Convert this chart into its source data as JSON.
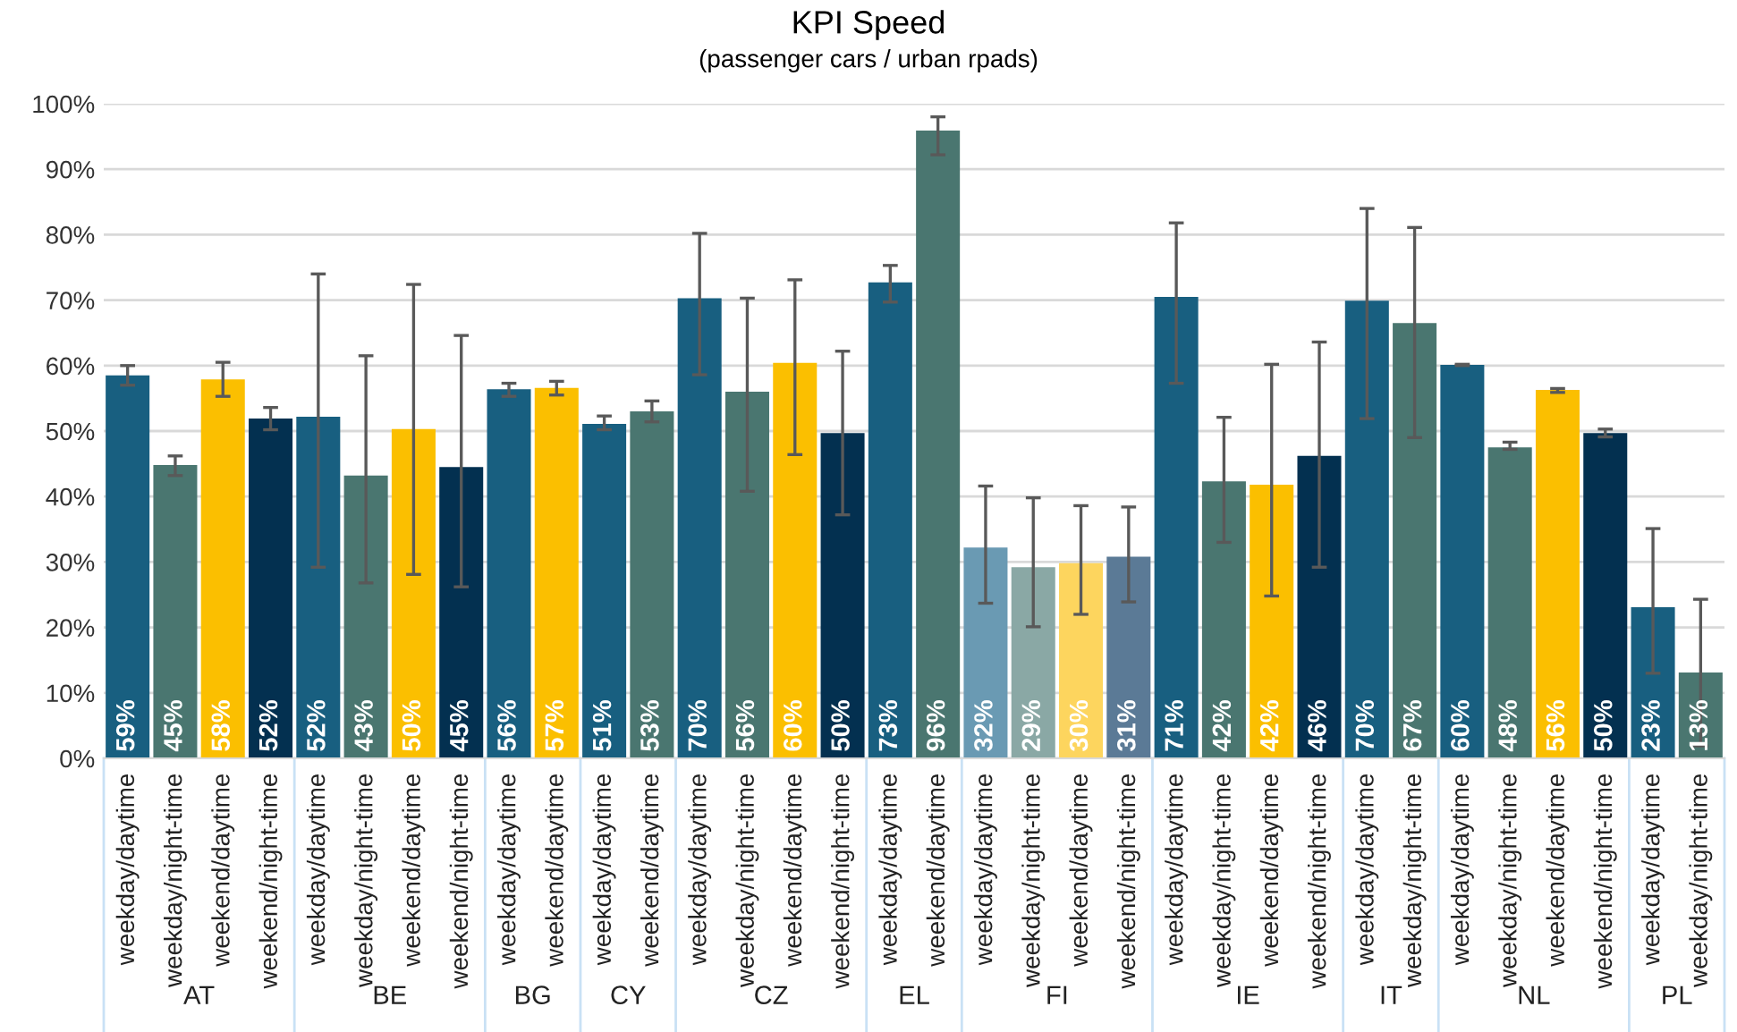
{
  "chart_data": {
    "type": "bar",
    "title": "KPI Speed",
    "subtitle": "(passenger cars / urban rpads)",
    "categories": [
      "weekday/daytime",
      "weekday/night-time",
      "weekend/daytime",
      "weekend/night-time",
      "weekday/daytime",
      "weekday/night-time",
      "weekend/daytime",
      "weekend/night-time",
      "weekday/daytime",
      "weekend/daytime",
      "weekday/daytime",
      "weekend/daytime",
      "weekday/daytime",
      "weekday/night-time",
      "weekend/daytime",
      "weekend/night-time",
      "weekday/daytime",
      "weekend/daytime",
      "weekday/daytime",
      "weekday/night-time",
      "weekend/daytime",
      "weekend/night-time",
      "weekday/daytime",
      "weekday/night-time",
      "weekend/daytime",
      "weekend/night-time",
      "weekday/daytime",
      "weekday/night-time",
      "weekday/daytime",
      "weekday/night-time",
      "weekend/daytime",
      "weekend/night-time",
      "weekday/daytime",
      "weekday/night-time"
    ],
    "values": [
      58.5,
      44.8,
      57.9,
      51.9,
      52.2,
      43.2,
      50.3,
      44.5,
      56.4,
      56.6,
      51.1,
      53.0,
      70.3,
      56.0,
      60.4,
      49.7,
      72.7,
      95.9,
      32.2,
      29.2,
      29.8,
      30.8,
      70.5,
      42.3,
      41.8,
      46.2,
      69.9,
      66.5,
      60.1,
      47.5,
      56.3,
      49.7,
      23.1,
      13.1
    ],
    "errors": [
      [
        57.0,
        60.0
      ],
      [
        43.2,
        46.2
      ],
      [
        55.3,
        60.5
      ],
      [
        50.2,
        53.6
      ],
      [
        29.2,
        74.0
      ],
      [
        26.8,
        61.5
      ],
      [
        28.1,
        72.4
      ],
      [
        26.2,
        64.6
      ],
      [
        55.3,
        57.3
      ],
      [
        55.5,
        57.6
      ],
      [
        50.2,
        52.3
      ],
      [
        51.4,
        54.6
      ],
      [
        58.6,
        80.2
      ],
      [
        40.8,
        70.3
      ],
      [
        46.4,
        73.1
      ],
      [
        37.2,
        62.2
      ],
      [
        69.7,
        75.3
      ],
      [
        92.2,
        98.0
      ],
      [
        23.7,
        41.6
      ],
      [
        20.1,
        39.8
      ],
      [
        22.0,
        38.6
      ],
      [
        23.9,
        38.4
      ],
      [
        57.3,
        81.8
      ],
      [
        33.0,
        52.1
      ],
      [
        24.8,
        60.2
      ],
      [
        29.2,
        63.6
      ],
      [
        51.9,
        84.0
      ],
      [
        49.0,
        81.1
      ],
      [
        60.0,
        60.2
      ],
      [
        47.2,
        48.3
      ],
      [
        55.9,
        56.5
      ],
      [
        49.1,
        50.3
      ],
      [
        13.0,
        35.1
      ],
      [
        1.9,
        24.3
      ]
    ],
    "value_labels": [
      "59%",
      "45%",
      "58%",
      "52%",
      "52%",
      "43%",
      "50%",
      "45%",
      "56%",
      "57%",
      "51%",
      "53%",
      "70%",
      "56%",
      "60%",
      "50%",
      "73%",
      "96%",
      "32%",
      "29%",
      "30%",
      "31%",
      "71%",
      "42%",
      "42%",
      "46%",
      "70%",
      "67%",
      "60%",
      "48%",
      "56%",
      "50%",
      "23%",
      "13%"
    ],
    "colors": [
      "#185f80",
      "#4a7670",
      "#fbbf00",
      "#033050",
      "#185f80",
      "#4a7670",
      "#fbbf00",
      "#033050",
      "#185f80",
      "#fbbf00",
      "#185f80",
      "#4a7670",
      "#185f80",
      "#4a7670",
      "#fbbf00",
      "#033050",
      "#185f80",
      "#4a7670",
      "#6a9ab3",
      "#8aa8a5",
      "#fdd55e",
      "#5b7a96",
      "#185f80",
      "#4a7670",
      "#fbbf00",
      "#033050",
      "#185f80",
      "#4a7670",
      "#185f80",
      "#4a7670",
      "#fbbf00",
      "#033050",
      "#185f80",
      "#4a7670"
    ],
    "annotations": [
      "AT",
      "BE",
      "BG",
      "CY",
      "CZ",
      "EL",
      "FI",
      "IE",
      "IT",
      "NL",
      "PL"
    ],
    "ylim": [
      0,
      100
    ],
    "yticks": [
      {
        "value": 0,
        "label": "0%"
      },
      {
        "value": 10,
        "label": "10%"
      },
      {
        "value": 20,
        "label": "20%"
      },
      {
        "value": 30,
        "label": "30%"
      },
      {
        "value": 40,
        "label": "40%"
      },
      {
        "value": 50,
        "label": "50%"
      },
      {
        "value": 60,
        "label": "60%"
      },
      {
        "value": 70,
        "label": "70%"
      },
      {
        "value": 80,
        "label": "80%"
      },
      {
        "value": 90,
        "label": "90%"
      },
      {
        "value": 100,
        "label": "100%"
      }
    ],
    "grid": "y"
  }
}
